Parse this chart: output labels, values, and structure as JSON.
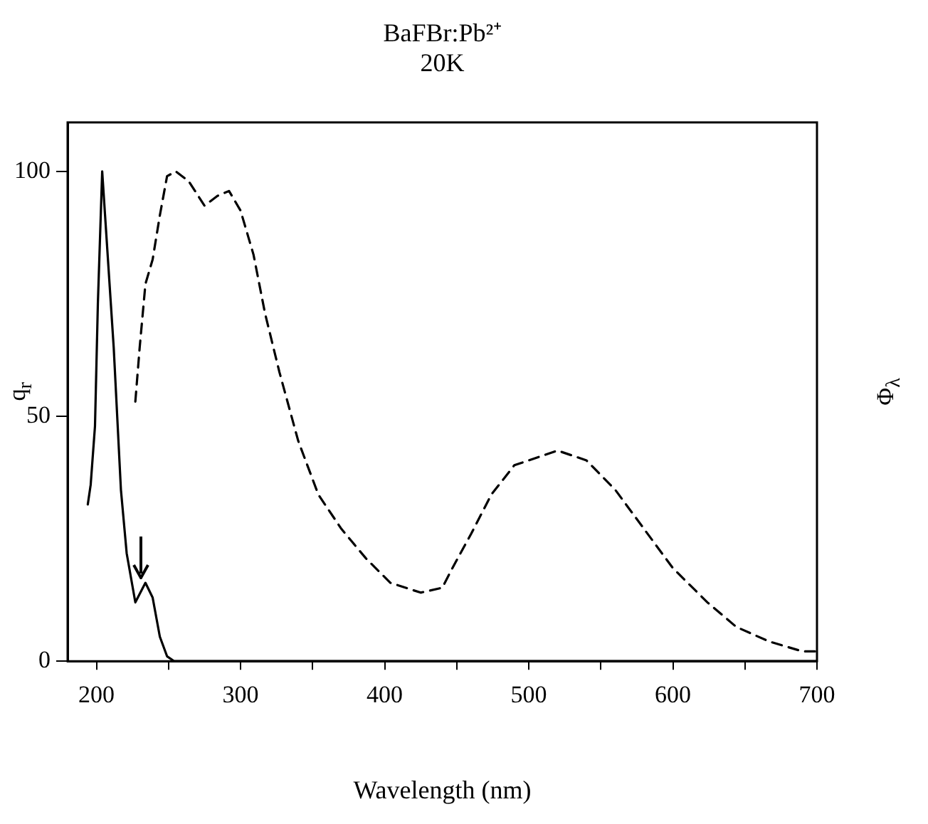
{
  "chart_data": {
    "type": "line",
    "title": "BaFBr:Pb²⁺",
    "subtitle": "20K",
    "xlabel": "Wavelength (nm)",
    "ylabel": "q$_{r}$",
    "y2label": "Φ$_{λ}$",
    "xlim": [
      180,
      700
    ],
    "xticks": [
      200,
      {
        "value": 250,
        "label": null
      },
      300,
      {
        "value": 350,
        "label": null
      },
      400,
      {
        "value": 450,
        "label": null
      },
      500,
      {
        "value": 550,
        "label": null
      },
      600,
      {
        "value": 650,
        "label": null
      },
      700
    ],
    "ylim": [
      0,
      110
    ],
    "yticks": [
      0,
      50,
      100
    ],
    "grid": false,
    "legend": false,
    "marker": "none",
    "series": [
      {
        "color": "#000000",
        "line_style": "solid",
        "x": [
          194,
          196,
          199,
          201,
          204,
          206,
          212,
          217,
          221,
          227,
          234,
          239,
          244,
          249,
          254,
          300,
          400,
          500,
          600,
          700
        ],
        "values": [
          32,
          36,
          48,
          73,
          100,
          91,
          64,
          35,
          22,
          12,
          16,
          13,
          5,
          1,
          0,
          0,
          0,
          0,
          0,
          0
        ]
      },
      {
        "color": "#000000",
        "line_style": "dashed",
        "x": [
          227,
          230,
          234,
          239,
          244,
          249,
          255,
          264,
          275,
          284,
          292,
          300,
          309,
          317,
          327,
          340,
          354,
          370,
          387,
          404,
          425,
          440,
          447,
          460,
          474,
          490,
          520,
          540,
          560,
          580,
          600,
          624,
          644,
          667,
          690,
          699
        ],
        "values": [
          53,
          64,
          77,
          82,
          91,
          99,
          100,
          98,
          93,
          95,
          96,
          92,
          83,
          71,
          59,
          45,
          34,
          27,
          21,
          16,
          14,
          15,
          19,
          26,
          34,
          40,
          43,
          41,
          35,
          27,
          19,
          12,
          7,
          4,
          2,
          2
        ]
      }
    ]
  }
}
